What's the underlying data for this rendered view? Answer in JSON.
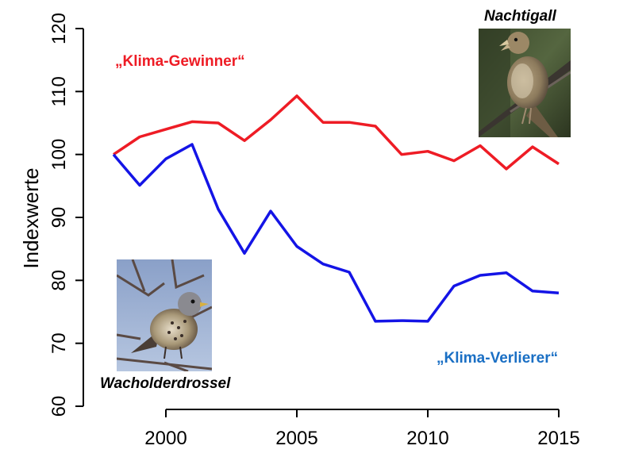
{
  "chart_data": {
    "type": "line",
    "ylabel": "Indexwerte",
    "xlabel": "",
    "xlim": [
      1997,
      2016
    ],
    "ylim": [
      60,
      120
    ],
    "x_ticks": [
      2000,
      2005,
      2010,
      2015
    ],
    "y_ticks": [
      60,
      70,
      80,
      90,
      100,
      110,
      120
    ],
    "x": [
      1998,
      1999,
      2000,
      2001,
      2002,
      2003,
      2004,
      2005,
      2006,
      2007,
      2008,
      2009,
      2010,
      2011,
      2012,
      2013,
      2014,
      2015
    ],
    "series": [
      {
        "name": "„Klima-Gewinner“",
        "color": "#ee1c25",
        "values": [
          100,
          102.8,
          104,
          105.2,
          105,
          102.2,
          105.5,
          109.3,
          105.1,
          105.1,
          104.5,
          100,
          100.5,
          99,
          101.4,
          97.7,
          101.2,
          98.5
        ]
      },
      {
        "name": "„Klima-Verlierer“",
        "color": "#1414e6",
        "values": [
          100,
          95.1,
          99.3,
          101.6,
          91.3,
          84.3,
          91,
          85.4,
          82.6,
          81.3,
          73.5,
          73.6,
          73.5,
          79.1,
          80.8,
          81.2,
          78.3,
          78
        ]
      }
    ],
    "annotations": [
      {
        "text": "„Klima-Gewinner“",
        "color": "#ee1c25"
      },
      {
        "text": "„Klima-Verlierer“",
        "color": "#1a6fc4"
      }
    ],
    "grid": false,
    "legend": "none"
  },
  "birds": {
    "top": {
      "label": "Nachtigall",
      "icon": "nightingale-photo-icon"
    },
    "bottom": {
      "label": "Wacholderdrossel",
      "icon": "fieldfare-photo-icon"
    }
  }
}
